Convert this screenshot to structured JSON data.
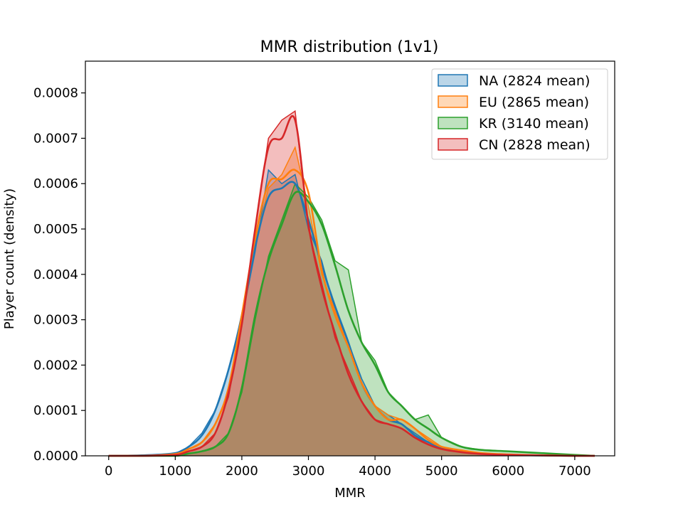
{
  "chart_data": {
    "type": "area",
    "title": "MMR distribution (1v1)",
    "xlabel": "MMR",
    "ylabel": "Player count (density)",
    "xlim": [
      -350,
      7600
    ],
    "ylim": [
      0,
      0.00087
    ],
    "x_ticks": [
      0,
      1000,
      2000,
      3000,
      4000,
      5000,
      6000,
      7000
    ],
    "x_tick_labels": [
      "0",
      "1000",
      "2000",
      "3000",
      "4000",
      "5000",
      "6000",
      "7000"
    ],
    "y_ticks": [
      0,
      0.0001,
      0.0002,
      0.0003,
      0.0004,
      0.0005,
      0.0006,
      0.0007,
      0.0008
    ],
    "y_tick_labels": [
      "0.0000",
      "0.0001",
      "0.0002",
      "0.0003",
      "0.0004",
      "0.0005",
      "0.0006",
      "0.0007",
      "0.0008"
    ],
    "grid": false,
    "legend_position": "top-right",
    "series": [
      {
        "name": "NA (2824 mean)",
        "color": "#1f77b4",
        "x": [
          0,
          500,
          1000,
          1200,
          1400,
          1600,
          1800,
          2000,
          2200,
          2400,
          2600,
          2800,
          3000,
          3200,
          3400,
          3600,
          3800,
          4000,
          4200,
          4400,
          4600,
          4800,
          5000,
          5300,
          5600,
          6000,
          6500,
          7000,
          7300
        ],
        "y": [
          0,
          1e-06,
          6e-06,
          2e-05,
          4.5e-05,
          0.0001,
          0.00019,
          0.00031,
          0.00046,
          0.00057,
          0.00059,
          0.0006,
          0.00052,
          0.00042,
          0.00033,
          0.00025,
          0.00016,
          0.00011,
          8e-05,
          7e-05,
          4.5e-05,
          3e-05,
          1.8e-05,
          1e-05,
          5e-06,
          2e-06,
          1e-06,
          0,
          0
        ],
        "raw_y": [
          0,
          1e-06,
          5e-06,
          2e-05,
          5e-05,
          0.0001,
          0.00019,
          0.0003,
          0.00045,
          0.00063,
          0.0006,
          0.00062,
          0.0005,
          0.00043,
          0.00032,
          0.00025,
          0.00017,
          0.00011,
          9e-05,
          7e-05,
          5e-05,
          3e-05,
          2e-05,
          1e-05,
          5e-06,
          2e-06,
          1e-06,
          0,
          0
        ]
      },
      {
        "name": "EU (2865 mean)",
        "color": "#ff7f0e",
        "x": [
          0,
          500,
          1000,
          1200,
          1400,
          1600,
          1800,
          2000,
          2200,
          2400,
          2600,
          2800,
          3000,
          3200,
          3400,
          3600,
          3800,
          4000,
          4200,
          4400,
          4600,
          4800,
          5000,
          5300,
          5600,
          6000,
          6500,
          7000,
          7300
        ],
        "y": [
          0,
          0,
          4e-06,
          1.5e-05,
          3e-05,
          7e-05,
          0.00015,
          0.00031,
          0.00048,
          0.0006,
          0.00061,
          0.00063,
          0.00058,
          0.00041,
          0.00031,
          0.00024,
          0.00016,
          0.00011,
          8e-05,
          8e-05,
          6e-05,
          3.5e-05,
          2e-05,
          1.2e-05,
          6e-06,
          3e-06,
          1e-06,
          0,
          0
        ],
        "raw_y": [
          0,
          0,
          4e-06,
          1.5e-05,
          3e-05,
          7e-05,
          0.00014,
          0.00029,
          0.00047,
          0.00059,
          0.00062,
          0.00068,
          0.00055,
          0.0004,
          0.00032,
          0.00024,
          0.00016,
          0.00011,
          9e-05,
          8e-05,
          6e-05,
          4e-05,
          2e-05,
          1.2e-05,
          6e-06,
          3e-06,
          1e-06,
          0,
          0
        ]
      },
      {
        "name": "KR (3140 mean)",
        "color": "#2ca02c",
        "x": [
          0,
          500,
          1000,
          1200,
          1400,
          1600,
          1800,
          2000,
          2200,
          2400,
          2600,
          2800,
          3000,
          3200,
          3400,
          3600,
          3800,
          4000,
          4200,
          4400,
          4600,
          4800,
          5000,
          5300,
          5600,
          6000,
          6500,
          7000,
          7300
        ],
        "y": [
          0,
          0,
          0,
          5e-06,
          1e-05,
          2e-05,
          5e-05,
          0.00015,
          0.00031,
          0.00043,
          0.00051,
          0.00058,
          0.00056,
          0.00051,
          0.00042,
          0.00032,
          0.00025,
          0.0002,
          0.00014,
          0.00011,
          8e-05,
          6e-05,
          4e-05,
          2e-05,
          1.3e-05,
          1e-05,
          6e-06,
          2e-06,
          0
        ],
        "raw_y": [
          0,
          0,
          0,
          5e-06,
          1e-05,
          2e-05,
          5e-05,
          0.00014,
          0.0003,
          0.00044,
          0.00052,
          0.0006,
          0.00057,
          0.00052,
          0.00043,
          0.00041,
          0.00025,
          0.00021,
          0.00014,
          0.00011,
          8e-05,
          9e-05,
          4e-05,
          2e-05,
          1.3e-05,
          1e-05,
          6e-06,
          2e-06,
          0
        ]
      },
      {
        "name": "CN (2828 mean)",
        "color": "#d62728",
        "x": [
          0,
          500,
          1000,
          1200,
          1400,
          1600,
          1800,
          2000,
          2200,
          2400,
          2600,
          2800,
          3000,
          3200,
          3400,
          3600,
          3800,
          4000,
          4200,
          4400,
          4600,
          4800,
          5000,
          5300,
          5600,
          6000,
          6500,
          7000,
          7300
        ],
        "y": [
          0,
          0,
          2e-06,
          1e-05,
          2e-05,
          5e-05,
          0.00014,
          0.00029,
          0.0005,
          0.00068,
          0.0007,
          0.00074,
          0.00051,
          0.00037,
          0.00027,
          0.00018,
          0.00012,
          8e-05,
          7e-05,
          6e-05,
          4e-05,
          2.5e-05,
          1.5e-05,
          8e-06,
          4e-06,
          2e-06,
          1e-06,
          0,
          0
        ],
        "raw_y": [
          0,
          0,
          2e-06,
          1e-05,
          2e-05,
          5e-05,
          0.00013,
          0.00029,
          0.0005,
          0.0007,
          0.00074,
          0.00076,
          0.0005,
          0.00038,
          0.00026,
          0.00019,
          0.00012,
          8e-05,
          7e-05,
          6e-05,
          4e-05,
          3e-05,
          1.5e-05,
          8e-06,
          4e-06,
          2e-06,
          1e-06,
          0,
          0
        ]
      }
    ]
  }
}
